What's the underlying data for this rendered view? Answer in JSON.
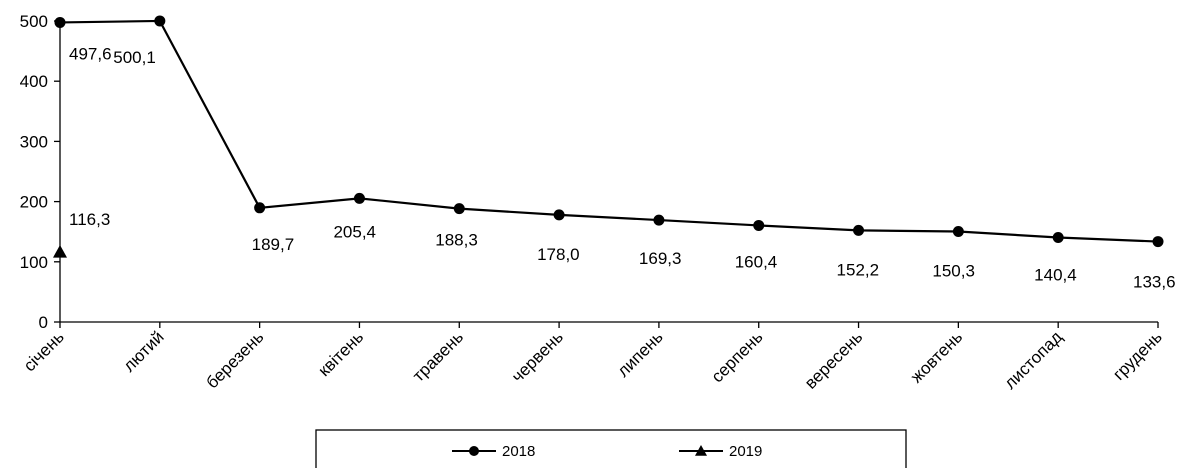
{
  "chart_data": {
    "type": "line",
    "categories": [
      "січень",
      "лютий",
      "березень",
      "квітень",
      "травень",
      "червень",
      "липень",
      "серпень",
      "вересень",
      "жовтень",
      "листопад",
      "грудень"
    ],
    "ylim": [
      0,
      500
    ],
    "yticks": [
      0,
      100,
      200,
      300,
      400,
      500
    ],
    "grid": false,
    "legend_position": "bottom",
    "series": [
      {
        "name": "2018",
        "marker": "circle",
        "color": "#000000",
        "values": [
          497.6,
          500.1,
          189.7,
          205.4,
          188.3,
          178.0,
          169.3,
          160.4,
          152.2,
          150.3,
          140.4,
          133.6
        ],
        "labels": [
          "497,6",
          "500,1",
          "189,7",
          "205,4",
          "188,3",
          "178,0",
          "169,3",
          "160,4",
          "152,2",
          "150,3",
          "140,4",
          "133,6"
        ]
      },
      {
        "name": "2019",
        "marker": "triangle",
        "color": "#000000",
        "values": [
          116.3,
          null,
          null,
          null,
          null,
          null,
          null,
          null,
          null,
          null,
          null,
          null
        ],
        "labels": [
          "116,3",
          "",
          "",
          "",
          "",
          "",
          "",
          "",
          "",
          "",
          "",
          ""
        ]
      }
    ]
  }
}
